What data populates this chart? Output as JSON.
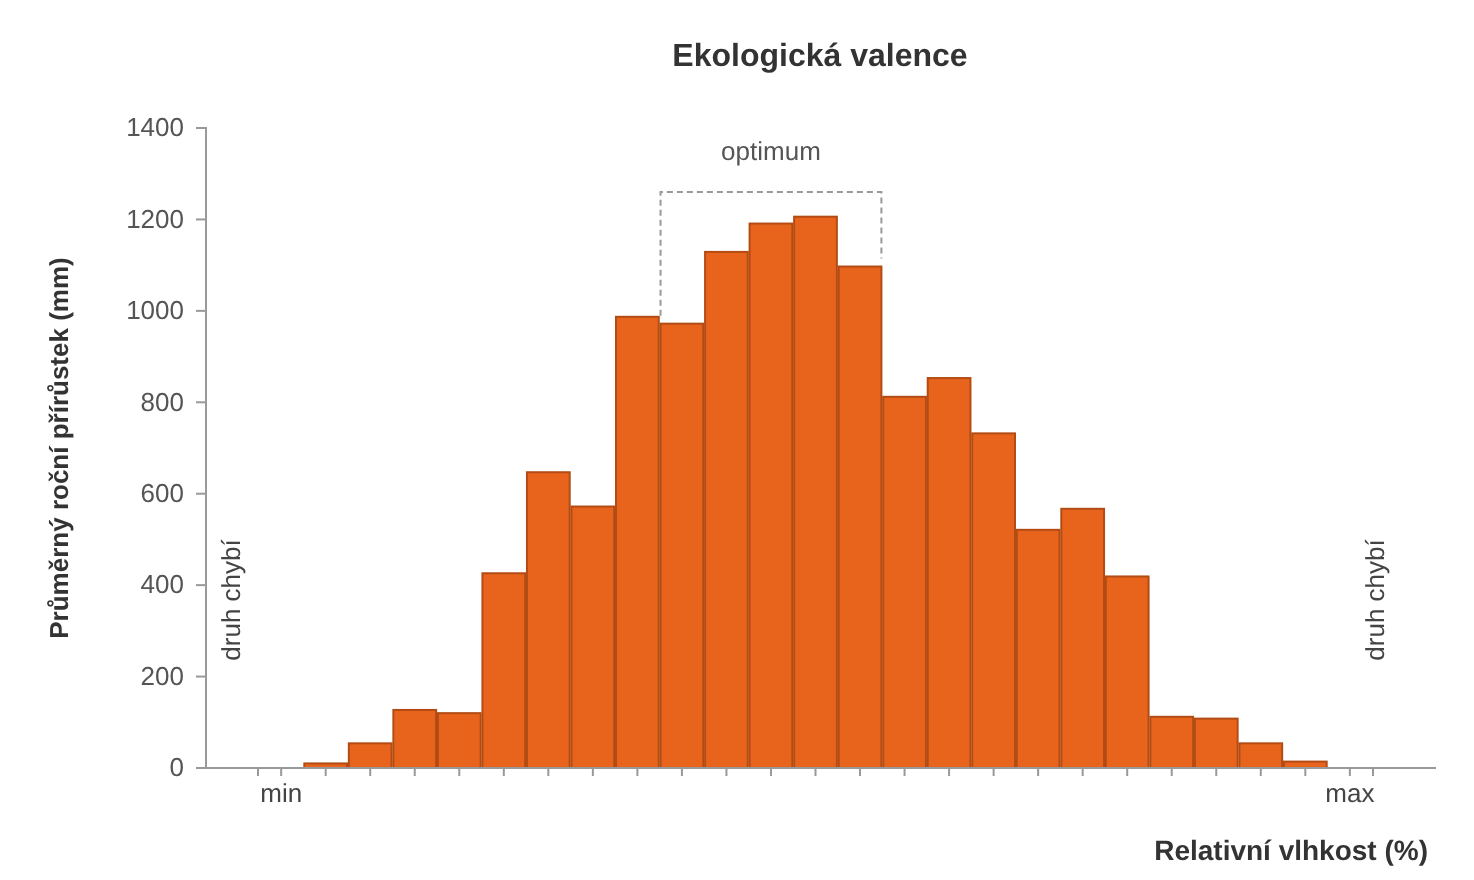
{
  "chart_data": {
    "type": "bar",
    "title": "Ekologická valence",
    "xlabel": "Relativní vlhkost (%)",
    "ylabel": "Průměrný roční přírůstek (mm)",
    "categories": [
      "min",
      null,
      null,
      null,
      null,
      null,
      null,
      null,
      null,
      null,
      null,
      null,
      null,
      null,
      null,
      null,
      null,
      null,
      null,
      null,
      null,
      null,
      null,
      null,
      "max"
    ],
    "values": [
      null,
      10,
      54,
      127,
      120,
      426,
      647,
      572,
      987,
      972,
      1129,
      1191,
      1206,
      1097,
      812,
      853,
      732,
      521,
      567,
      419,
      112,
      108,
      54,
      14,
      null
    ],
    "color": "#e8641c",
    "ylim": [
      0,
      1400
    ],
    "yticks": [
      0,
      200,
      400,
      600,
      800,
      1000,
      1200,
      1400
    ],
    "grid": false,
    "annotations": [
      "optimum",
      "druh chybí",
      "druh chybí"
    ]
  }
}
